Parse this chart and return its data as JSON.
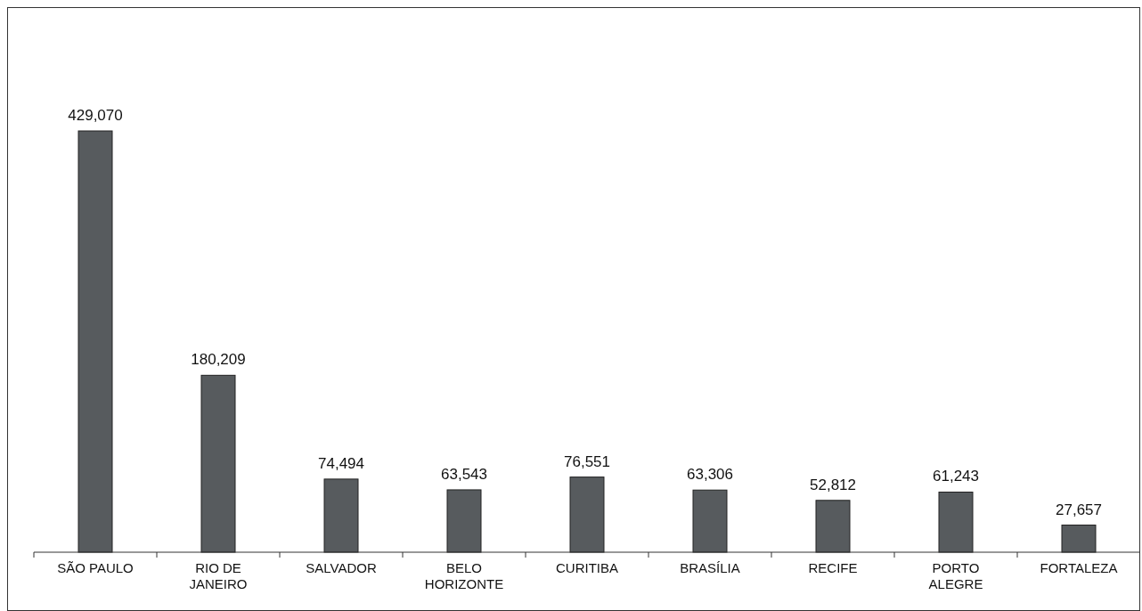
{
  "chart_data": {
    "type": "bar",
    "categories": [
      "SÃO PAULO",
      "RIO DE JANEIRO",
      "SALVADOR",
      "BELO HORIZONTE",
      "CURITIBA",
      "BRASÍLIA",
      "RECIFE",
      "PORTO ALEGRE",
      "FORTALEZA"
    ],
    "values": [
      429070,
      180209,
      74494,
      63543,
      76551,
      63306,
      52812,
      61243,
      27657
    ],
    "value_labels": [
      "429,070",
      "180,209",
      "74,494",
      "63,543",
      "76,551",
      "63,306",
      "52,812",
      "61,243",
      "27,657"
    ],
    "color": "#575b5e"
  }
}
